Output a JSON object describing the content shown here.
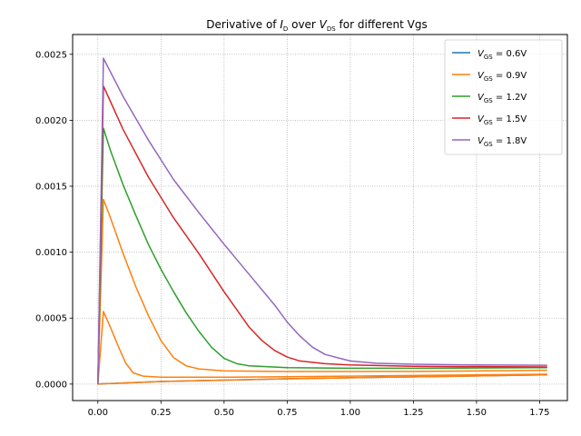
{
  "chart_data": {
    "type": "line",
    "title": {
      "prefix": "Derivative of ",
      "y_var": "I",
      "y_sub": "D",
      "middle": " over ",
      "x_var": "V",
      "x_sub": "DS",
      "suffix": " for different Vgs"
    },
    "xlabel": "",
    "ylabel": "",
    "xlim": [
      -0.1,
      1.86
    ],
    "ylim": [
      -0.000125,
      0.00265
    ],
    "x_ticks": [
      0.0,
      0.25,
      0.5,
      0.75,
      1.0,
      1.25,
      1.5,
      1.75
    ],
    "x_tick_labels": [
      "0.00",
      "0.25",
      "0.50",
      "0.75",
      "1.00",
      "1.25",
      "1.50",
      "1.75"
    ],
    "y_ticks": [
      0.0,
      0.0005,
      0.001,
      0.0015,
      0.002,
      0.0025
    ],
    "y_tick_labels": [
      "0.0000",
      "0.0005",
      "0.0010",
      "0.0015",
      "0.0020",
      "0.0025"
    ],
    "grid": true,
    "legend_position": "top-right",
    "series": [
      {
        "legend_var": "V",
        "legend_sub": "GS",
        "legend_value": " = 0.6V",
        "color": "#1f77b4",
        "points": [
          [
            0,
            0
          ],
          [
            0.018,
            2e-06
          ],
          [
            0.25,
            2e-05
          ],
          [
            0.5,
            3e-05
          ],
          [
            0.75,
            4e-05
          ],
          [
            1.0,
            4.8e-05
          ],
          [
            1.25,
            5.5e-05
          ],
          [
            1.5,
            6.2e-05
          ],
          [
            1.78,
            7e-05
          ]
        ]
      },
      {
        "legend_var": "V",
        "legend_sub": "GS",
        "legend_value": " = 0.9V",
        "color": "#ff7f0e",
        "points": [
          [
            0,
            0
          ],
          [
            0.018,
            2e-06
          ],
          [
            0.25,
            2e-05
          ],
          [
            0.5,
            3e-05
          ],
          [
            0.75,
            4e-05
          ],
          [
            1.0,
            4.8e-05
          ],
          [
            1.25,
            5.5e-05
          ],
          [
            1.5,
            6.2e-05
          ],
          [
            1.78,
            7e-05
          ]
        ]
      },
      {
        "legend_var": "V",
        "legend_sub": "GS",
        "legend_value": " = 0.9V",
        "color": "#ff7f0e",
        "points": [
          [
            0,
            0
          ],
          [
            0.022,
            0.00055
          ],
          [
            0.05,
            0.00043
          ],
          [
            0.08,
            0.00029
          ],
          [
            0.11,
            0.00016
          ],
          [
            0.14,
            8.5e-05
          ],
          [
            0.18,
            6e-05
          ],
          [
            0.25,
            5.2e-05
          ],
          [
            0.5,
            5.2e-05
          ],
          [
            0.75,
            5.6e-05
          ],
          [
            1.0,
            6e-05
          ],
          [
            1.25,
            6.5e-05
          ],
          [
            1.5,
            7e-05
          ],
          [
            1.78,
            7.5e-05
          ]
        ]
      },
      {
        "legend_var": "V",
        "legend_sub": "GS",
        "legend_value": " = 0.9V",
        "color": "#ff7f0e",
        "points": [
          [
            0,
            0
          ],
          [
            0.022,
            0.0014
          ],
          [
            0.05,
            0.00126
          ],
          [
            0.1,
            0.00099
          ],
          [
            0.15,
            0.00074
          ],
          [
            0.2,
            0.00052
          ],
          [
            0.25,
            0.00033
          ],
          [
            0.3,
            0.0002
          ],
          [
            0.35,
            0.000138
          ],
          [
            0.4,
            0.000115
          ],
          [
            0.5,
            0.0001
          ],
          [
            0.75,
            9.5e-05
          ],
          [
            1.0,
            9.5e-05
          ],
          [
            1.25,
            9.6e-05
          ],
          [
            1.5,
            0.0001
          ],
          [
            1.78,
            0.000105
          ]
        ]
      },
      {
        "legend_var": "V",
        "legend_sub": "GS",
        "legend_value": " = 1.2V",
        "color": "#2ca02c",
        "points": [
          [
            0,
            0
          ],
          [
            0.022,
            0.00194
          ],
          [
            0.05,
            0.00177
          ],
          [
            0.1,
            0.00151
          ],
          [
            0.15,
            0.00128
          ],
          [
            0.2,
            0.00106
          ],
          [
            0.25,
            0.00087
          ],
          [
            0.3,
            0.0007
          ],
          [
            0.35,
            0.00054
          ],
          [
            0.4,
            0.0004
          ],
          [
            0.45,
            0.00028
          ],
          [
            0.5,
            0.000195
          ],
          [
            0.55,
            0.000155
          ],
          [
            0.6,
            0.000138
          ],
          [
            0.75,
            0.000125
          ],
          [
            1.0,
            0.00012
          ],
          [
            1.25,
            0.00012
          ],
          [
            1.5,
            0.000122
          ],
          [
            1.78,
            0.000125
          ]
        ]
      },
      {
        "legend_var": "V",
        "legend_sub": "GS",
        "legend_value": " = 1.5V",
        "color": "#d62728",
        "points": [
          [
            0,
            0
          ],
          [
            0.022,
            0.00226
          ],
          [
            0.1,
            0.00193
          ],
          [
            0.2,
            0.00157
          ],
          [
            0.3,
            0.00126
          ],
          [
            0.4,
            0.00099
          ],
          [
            0.5,
            0.0007
          ],
          [
            0.6,
            0.00043
          ],
          [
            0.65,
            0.00033
          ],
          [
            0.7,
            0.000255
          ],
          [
            0.75,
            0.000205
          ],
          [
            0.8,
            0.000175
          ],
          [
            0.9,
            0.000155
          ],
          [
            1.0,
            0.000145
          ],
          [
            1.25,
            0.000135
          ],
          [
            1.5,
            0.000132
          ],
          [
            1.78,
            0.00013
          ]
        ]
      },
      {
        "legend_var": "V",
        "legend_sub": "GS",
        "legend_value": " = 1.8V",
        "color": "#9467bd",
        "points": [
          [
            0,
            0
          ],
          [
            0.022,
            0.00247
          ],
          [
            0.1,
            0.00218
          ],
          [
            0.2,
            0.00185
          ],
          [
            0.3,
            0.00155
          ],
          [
            0.4,
            0.0013
          ],
          [
            0.5,
            0.00106
          ],
          [
            0.6,
            0.00083
          ],
          [
            0.7,
            0.0006
          ],
          [
            0.75,
            0.00047
          ],
          [
            0.8,
            0.000365
          ],
          [
            0.85,
            0.00028
          ],
          [
            0.9,
            0.000225
          ],
          [
            1.0,
            0.000175
          ],
          [
            1.1,
            0.000158
          ],
          [
            1.25,
            0.00015
          ],
          [
            1.5,
            0.000145
          ],
          [
            1.78,
            0.000143
          ]
        ]
      }
    ],
    "legend_items": [
      0,
      1,
      4,
      5,
      6
    ]
  }
}
